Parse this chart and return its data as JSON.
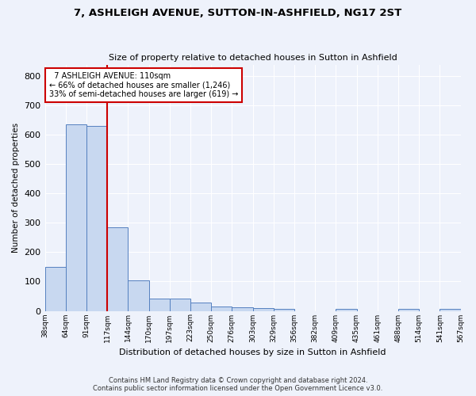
{
  "title": "7, ASHLEIGH AVENUE, SUTTON-IN-ASHFIELD, NG17 2ST",
  "subtitle": "Size of property relative to detached houses in Sutton in Ashfield",
  "xlabel": "Distribution of detached houses by size in Sutton in Ashfield",
  "ylabel": "Number of detached properties",
  "footer_line1": "Contains HM Land Registry data © Crown copyright and database right 2024.",
  "footer_line2": "Contains public sector information licensed under the Open Government Licence v3.0.",
  "annotation_line1": "  7 ASHLEIGH AVENUE: 110sqm",
  "annotation_line2": "← 66% of detached houses are smaller (1,246)",
  "annotation_line3": "33% of semi-detached houses are larger (619) →",
  "property_size_bin": 3,
  "bar_heights": [
    150,
    635,
    630,
    285,
    103,
    43,
    42,
    28,
    14,
    12,
    9,
    6,
    0,
    0,
    7,
    0,
    0,
    6,
    0,
    6
  ],
  "bar_color": "#c8d8f0",
  "bar_edge_color": "#5580c0",
  "marker_color": "#cc0000",
  "ylim": [
    0,
    840
  ],
  "yticks": [
    0,
    100,
    200,
    300,
    400,
    500,
    600,
    700,
    800
  ],
  "background_color": "#eef2fb",
  "grid_color": "#ffffff",
  "tick_labels": [
    "38sqm",
    "64sqm",
    "91sqm",
    "117sqm",
    "144sqm",
    "170sqm",
    "197sqm",
    "223sqm",
    "250sqm",
    "276sqm",
    "303sqm",
    "329sqm",
    "356sqm",
    "382sqm",
    "409sqm",
    "435sqm",
    "461sqm",
    "488sqm",
    "514sqm",
    "541sqm",
    "567sqm"
  ]
}
